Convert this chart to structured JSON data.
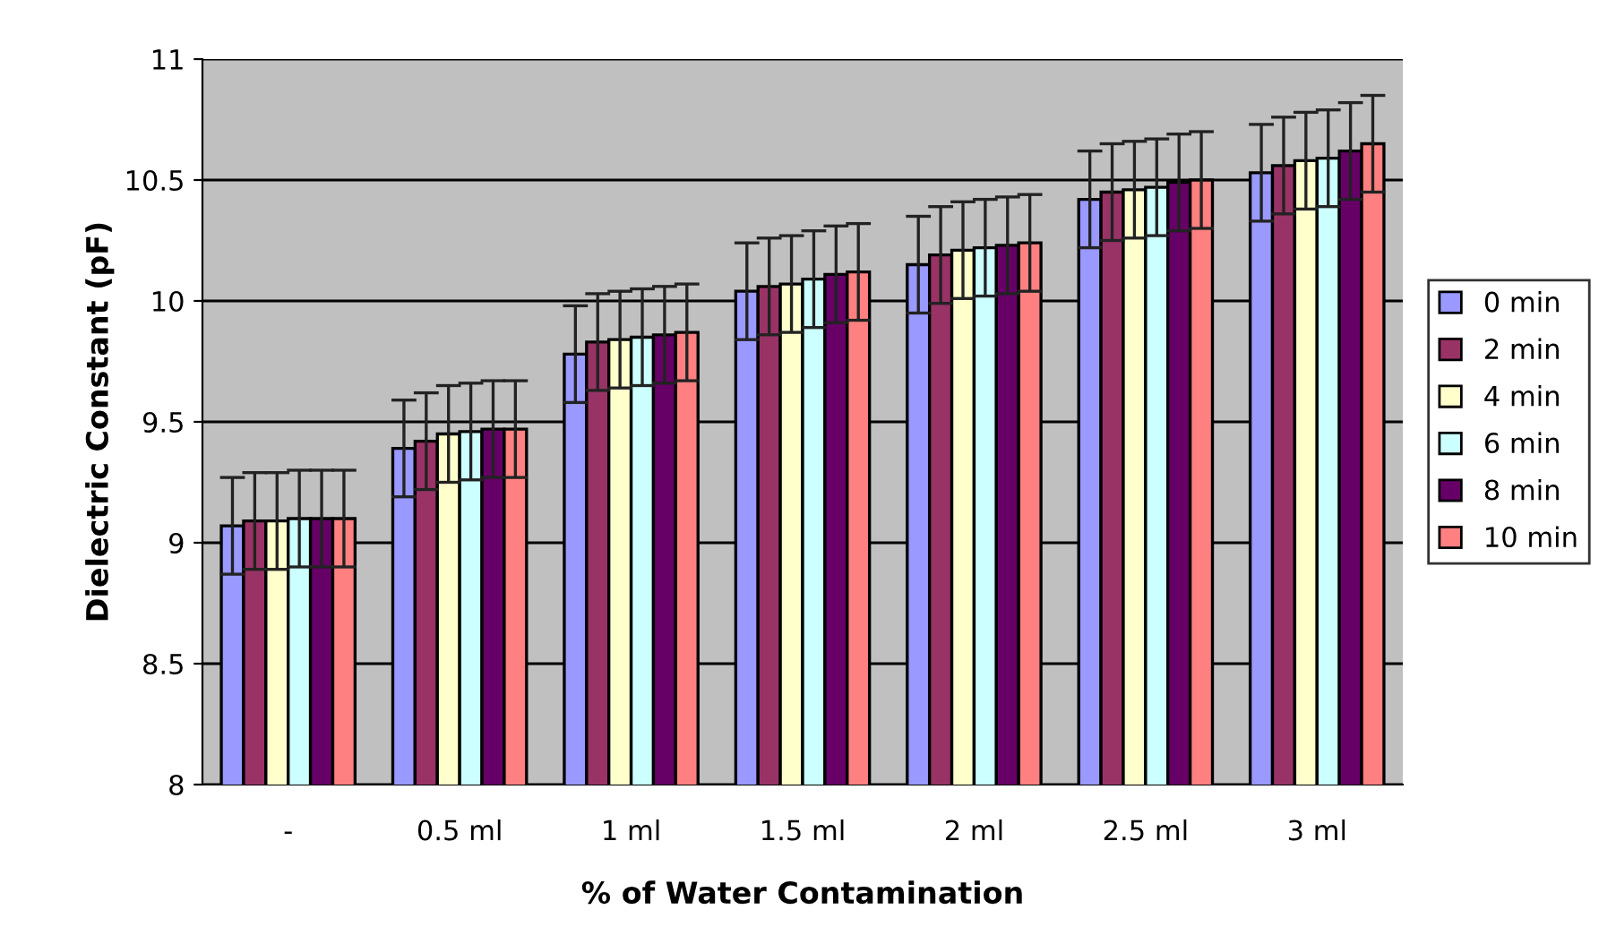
{
  "chart_data": {
    "type": "bar",
    "xlabel": "% of Water Contamination",
    "ylabel": "Dielectric Constant (pF)",
    "categories": [
      "-",
      "0.5 ml",
      "1 ml",
      "1.5 ml",
      "2 ml",
      "2.5 ml",
      "3 ml"
    ],
    "series": [
      {
        "name": "0 min",
        "color": "#9999ff",
        "values": [
          9.07,
          9.39,
          9.78,
          10.04,
          10.15,
          10.42,
          10.53
        ],
        "errors": [
          0.2,
          0.2,
          0.2,
          0.2,
          0.2,
          0.2,
          0.2
        ]
      },
      {
        "name": "2 min",
        "color": "#993366",
        "values": [
          9.09,
          9.42,
          9.83,
          10.06,
          10.19,
          10.45,
          10.56
        ],
        "errors": [
          0.2,
          0.2,
          0.2,
          0.2,
          0.2,
          0.2,
          0.2
        ]
      },
      {
        "name": "4 min",
        "color": "#ffffcc",
        "values": [
          9.09,
          9.45,
          9.84,
          10.07,
          10.21,
          10.46,
          10.58
        ],
        "errors": [
          0.2,
          0.2,
          0.2,
          0.2,
          0.2,
          0.2,
          0.2
        ]
      },
      {
        "name": "6 min",
        "color": "#ccffff",
        "values": [
          9.1,
          9.46,
          9.85,
          10.09,
          10.22,
          10.47,
          10.59
        ],
        "errors": [
          0.2,
          0.2,
          0.2,
          0.2,
          0.2,
          0.2,
          0.2
        ]
      },
      {
        "name": "8 min",
        "color": "#660066",
        "values": [
          9.1,
          9.47,
          9.86,
          10.11,
          10.23,
          10.49,
          10.62
        ],
        "errors": [
          0.2,
          0.2,
          0.2,
          0.2,
          0.2,
          0.2,
          0.2
        ]
      },
      {
        "name": "10 min",
        "color": "#ff8080",
        "values": [
          9.1,
          9.47,
          9.87,
          10.12,
          10.24,
          10.5,
          10.65
        ],
        "errors": [
          0.2,
          0.2,
          0.2,
          0.2,
          0.2,
          0.2,
          0.2
        ]
      }
    ],
    "ylim": [
      8,
      11
    ],
    "yticks": [
      8,
      8.5,
      9,
      9.5,
      10,
      10.5,
      11
    ],
    "grid": "y",
    "legend": "right"
  }
}
